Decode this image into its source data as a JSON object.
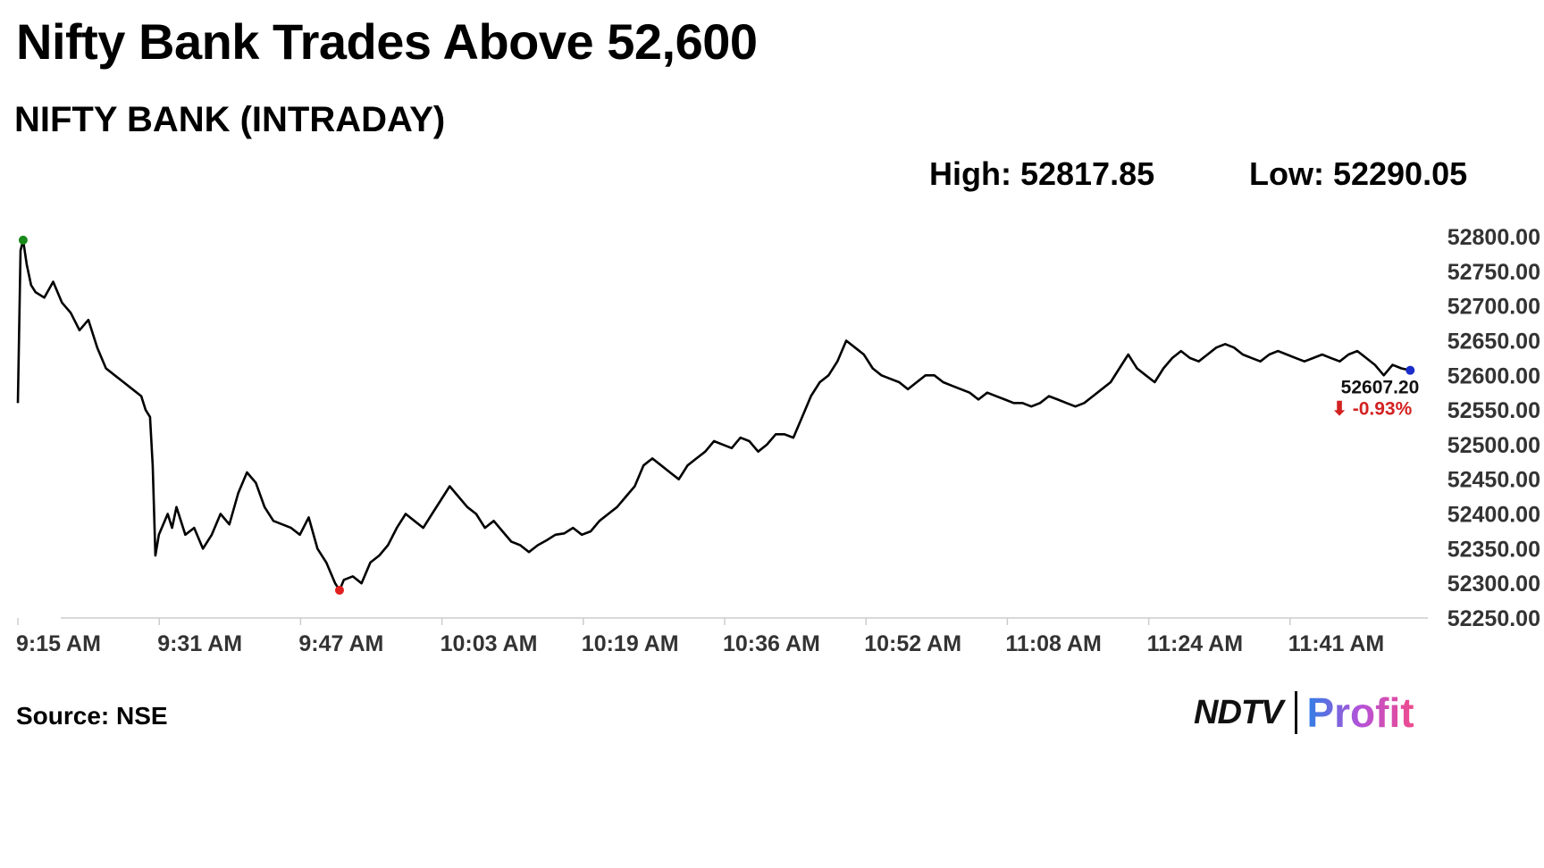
{
  "headline": "Nifty Bank Trades Above 52,600",
  "subtitle": "NIFTY BANK (INTRADAY)",
  "stats": {
    "high": "High: 52817.85",
    "low": "Low: 52290.05"
  },
  "source": "Source: NSE",
  "logo": {
    "ndtv": "NDTV",
    "profit": "Profit"
  },
  "colors": {
    "line": "#000000",
    "high_marker": "#1a8a1a",
    "low_marker": "#e02020",
    "last_marker": "#1a2ccc",
    "down": "#d32222",
    "axis": "#cccccc"
  },
  "last_label": {
    "value": "52607.20",
    "change": "-0.93%"
  },
  "chart_data": {
    "type": "line",
    "title": "NIFTY BANK (INTRADAY)",
    "xlabel": "",
    "ylabel": "",
    "ylim": [
      52250,
      52800
    ],
    "xlim": [
      "9:15 AM",
      "11:55 AM"
    ],
    "grid": false,
    "legend": "none",
    "x_ticks": [
      "9:15 AM",
      "9:31 AM",
      "9:47 AM",
      "10:03 AM",
      "10:19 AM",
      "10:36 AM",
      "10:52 AM",
      "11:08 AM",
      "11:24 AM",
      "11:41 AM"
    ],
    "y_ticks": [
      "52800.00",
      "52750.00",
      "52700.00",
      "52650.00",
      "52600.00",
      "52550.00",
      "52500.00",
      "52450.00",
      "52400.00",
      "52350.00",
      "52300.00",
      "52250.00"
    ],
    "high": 52817.85,
    "low": 52290.05,
    "last": 52607.2,
    "change_pct": -0.93,
    "series": [
      {
        "x_unit": "minutes after 9:15 AM",
        "points": [
          [
            0,
            52560
          ],
          [
            0.3,
            52780
          ],
          [
            0.6,
            52795
          ],
          [
            1,
            52760
          ],
          [
            1.5,
            52730
          ],
          [
            2,
            52720
          ],
          [
            3,
            52712
          ],
          [
            4,
            52735
          ],
          [
            5,
            52705
          ],
          [
            6,
            52690
          ],
          [
            7,
            52665
          ],
          [
            8,
            52680
          ],
          [
            9,
            52640
          ],
          [
            10,
            52610
          ],
          [
            11,
            52600
          ],
          [
            12,
            52590
          ],
          [
            13,
            52580
          ],
          [
            14,
            52570
          ],
          [
            14.5,
            52550
          ],
          [
            15,
            52540
          ],
          [
            15.3,
            52470
          ],
          [
            15.6,
            52340
          ],
          [
            16,
            52370
          ],
          [
            17,
            52400
          ],
          [
            17.5,
            52380
          ],
          [
            18,
            52410
          ],
          [
            19,
            52370
          ],
          [
            20,
            52380
          ],
          [
            21,
            52350
          ],
          [
            22,
            52370
          ],
          [
            23,
            52400
          ],
          [
            24,
            52385
          ],
          [
            25,
            52430
          ],
          [
            26,
            52460
          ],
          [
            27,
            52445
          ],
          [
            28,
            52410
          ],
          [
            29,
            52390
          ],
          [
            30,
            52385
          ],
          [
            31,
            52380
          ],
          [
            32,
            52370
          ],
          [
            33,
            52395
          ],
          [
            34,
            52350
          ],
          [
            35,
            52330
          ],
          [
            36,
            52300
          ],
          [
            36.5,
            52290
          ],
          [
            37,
            52305
          ],
          [
            38,
            52310
          ],
          [
            39,
            52300
          ],
          [
            40,
            52330
          ],
          [
            41,
            52340
          ],
          [
            42,
            52355
          ],
          [
            43,
            52380
          ],
          [
            44,
            52400
          ],
          [
            45,
            52390
          ],
          [
            46,
            52380
          ],
          [
            47,
            52400
          ],
          [
            48,
            52420
          ],
          [
            49,
            52440
          ],
          [
            50,
            52425
          ],
          [
            51,
            52410
          ],
          [
            52,
            52400
          ],
          [
            53,
            52380
          ],
          [
            54,
            52390
          ],
          [
            55,
            52375
          ],
          [
            56,
            52360
          ],
          [
            57,
            52355
          ],
          [
            58,
            52345
          ],
          [
            59,
            52355
          ],
          [
            60,
            52362
          ],
          [
            61,
            52370
          ],
          [
            62,
            52372
          ],
          [
            63,
            52380
          ],
          [
            64,
            52370
          ],
          [
            65,
            52375
          ],
          [
            66,
            52390
          ],
          [
            67,
            52400
          ],
          [
            68,
            52410
          ],
          [
            69,
            52425
          ],
          [
            70,
            52440
          ],
          [
            71,
            52470
          ],
          [
            72,
            52480
          ],
          [
            73,
            52470
          ],
          [
            74,
            52460
          ],
          [
            75,
            52450
          ],
          [
            76,
            52470
          ],
          [
            77,
            52480
          ],
          [
            78,
            52490
          ],
          [
            79,
            52505
          ],
          [
            80,
            52500
          ],
          [
            81,
            52495
          ],
          [
            82,
            52510
          ],
          [
            83,
            52505
          ],
          [
            84,
            52490
          ],
          [
            85,
            52500
          ],
          [
            86,
            52515
          ],
          [
            87,
            52515
          ],
          [
            88,
            52510
          ],
          [
            89,
            52540
          ],
          [
            90,
            52570
          ],
          [
            91,
            52590
          ],
          [
            92,
            52600
          ],
          [
            93,
            52620
          ],
          [
            94,
            52650
          ],
          [
            95,
            52640
          ],
          [
            96,
            52630
          ],
          [
            97,
            52610
          ],
          [
            98,
            52600
          ],
          [
            99,
            52595
          ],
          [
            100,
            52590
          ],
          [
            101,
            52580
          ],
          [
            102,
            52590
          ],
          [
            103,
            52600
          ],
          [
            104,
            52600
          ],
          [
            105,
            52590
          ],
          [
            106,
            52585
          ],
          [
            107,
            52580
          ],
          [
            108,
            52575
          ],
          [
            109,
            52565
          ],
          [
            110,
            52575
          ],
          [
            111,
            52570
          ],
          [
            112,
            52565
          ],
          [
            113,
            52560
          ],
          [
            114,
            52560
          ],
          [
            115,
            52555
          ],
          [
            116,
            52560
          ],
          [
            117,
            52570
          ],
          [
            118,
            52565
          ],
          [
            119,
            52560
          ],
          [
            120,
            52555
          ],
          [
            121,
            52560
          ],
          [
            122,
            52570
          ],
          [
            123,
            52580
          ],
          [
            124,
            52590
          ],
          [
            125,
            52610
          ],
          [
            126,
            52630
          ],
          [
            127,
            52610
          ],
          [
            128,
            52600
          ],
          [
            129,
            52590
          ],
          [
            130,
            52610
          ],
          [
            131,
            52625
          ],
          [
            132,
            52635
          ],
          [
            133,
            52625
          ],
          [
            134,
            52620
          ],
          [
            135,
            52630
          ],
          [
            136,
            52640
          ],
          [
            137,
            52645
          ],
          [
            138,
            52640
          ],
          [
            139,
            52630
          ],
          [
            140,
            52625
          ],
          [
            141,
            52620
          ],
          [
            142,
            52630
          ],
          [
            143,
            52635
          ],
          [
            144,
            52630
          ],
          [
            145,
            52625
          ],
          [
            146,
            52620
          ],
          [
            147,
            52625
          ],
          [
            148,
            52630
          ],
          [
            149,
            52625
          ],
          [
            150,
            52620
          ],
          [
            151,
            52630
          ],
          [
            152,
            52635
          ],
          [
            153,
            52625
          ],
          [
            154,
            52615
          ],
          [
            155,
            52600
          ],
          [
            156,
            52615
          ],
          [
            157,
            52610
          ],
          [
            158,
            52607.2
          ]
        ]
      }
    ]
  }
}
